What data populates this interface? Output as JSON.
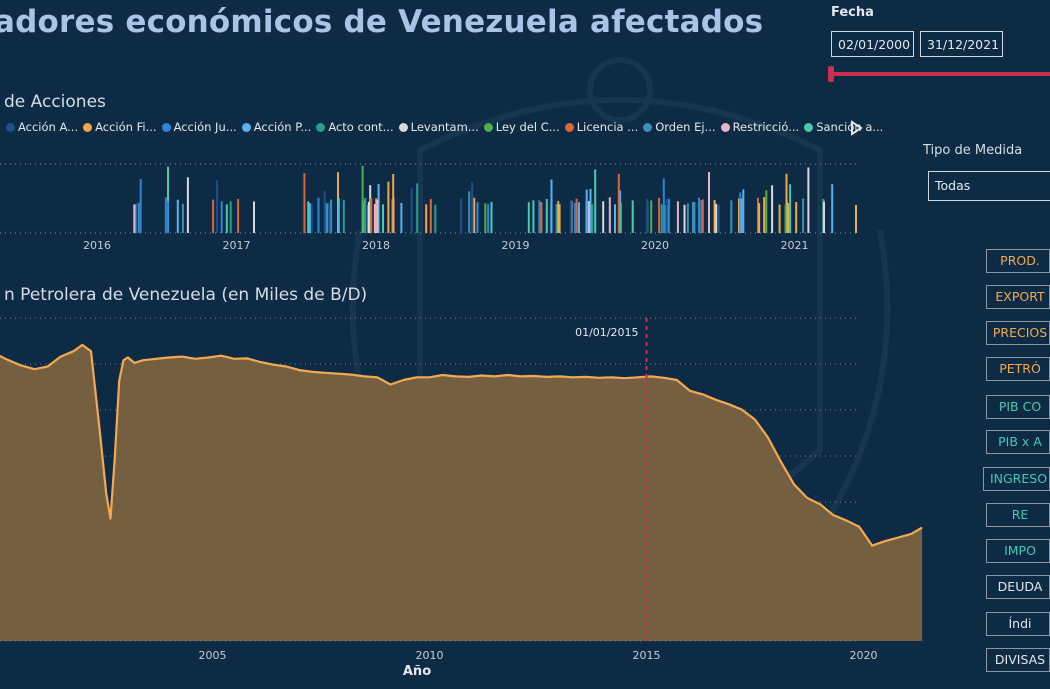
{
  "header": {
    "title": "adores económicos de Venezuela afectados"
  },
  "filters": {
    "fecha_label": "Fecha",
    "fecha_inicio": "02/01/2000",
    "fecha_fin": "31/12/2021",
    "tipo_medida_label": "Tipo de Medida",
    "tipo_medida_value": "Todas",
    "slider_color": "#c7314d"
  },
  "actions_chart": {
    "title": "de Acciones",
    "legend": [
      {
        "label": "Acción A...",
        "color": "#1f4e8c"
      },
      {
        "label": "Acción Fi...",
        "color": "#f0a84a"
      },
      {
        "label": "Acción Ju...",
        "color": "#2e86d6"
      },
      {
        "label": "Acción P...",
        "color": "#5bb0f0"
      },
      {
        "label": "Acto cont...",
        "color": "#2a9d8f"
      },
      {
        "label": "Levantam...",
        "color": "#d9d9d9"
      },
      {
        "label": "Ley del C...",
        "color": "#4caf50"
      },
      {
        "label": "Licencia ...",
        "color": "#e0643a"
      },
      {
        "label": "Orden Ej...",
        "color": "#3a8fb7"
      },
      {
        "label": "Restricció...",
        "color": "#e8b4c8"
      },
      {
        "label": "Sanción a...",
        "color": "#48c9b0"
      }
    ],
    "legend_next_icon": "play-triangle-icon",
    "x_ticks": [
      "2016",
      "2017",
      "2018",
      "2019",
      "2020",
      "2021"
    ]
  },
  "oil_chart": {
    "title": "n Petrolera de Venezuela (en Miles de B/D)",
    "reference_label": "01/01/2015",
    "x_ticks": [
      "2005",
      "2010",
      "2015",
      "2020"
    ],
    "xlabel": "Año",
    "line_color": "#f4a950",
    "fill_color": "#7a6240",
    "ref_color": "#c7314d",
    "chart_data": {
      "type": "area",
      "x": [
        2000.0,
        2000.3,
        2000.6,
        2000.9,
        2001.2,
        2001.5,
        2001.8,
        2002.0,
        2002.2,
        2002.4,
        2002.55,
        2002.65,
        2002.75,
        2002.85,
        2002.95,
        2003.05,
        2003.2,
        2003.4,
        2003.6,
        2003.8,
        2004.0,
        2004.3,
        2004.6,
        2004.9,
        2005.2,
        2005.5,
        2005.8,
        2006.1,
        2006.4,
        2006.7,
        2007.0,
        2007.3,
        2007.6,
        2007.9,
        2008.2,
        2008.5,
        2008.8,
        2009.1,
        2009.4,
        2009.7,
        2010.0,
        2010.3,
        2010.6,
        2010.9,
        2011.2,
        2011.5,
        2011.8,
        2012.1,
        2012.4,
        2012.7,
        2013.0,
        2013.3,
        2013.6,
        2013.9,
        2014.2,
        2014.5,
        2014.8,
        2015.1,
        2015.4,
        2015.7,
        2016.0,
        2016.3,
        2016.6,
        2016.9,
        2017.2,
        2017.5,
        2017.8,
        2018.1,
        2018.4,
        2018.7,
        2019.0,
        2019.3,
        2019.6,
        2019.9,
        2020.2,
        2020.5,
        2020.8,
        2021.1,
        2021.35
      ],
      "y": [
        3050,
        2980,
        2920,
        2880,
        2910,
        3020,
        3080,
        3150,
        3080,
        2200,
        1500,
        1220,
        1900,
        2750,
        2980,
        3010,
        2950,
        2980,
        2990,
        3000,
        3010,
        3020,
        2995,
        3010,
        3030,
        2995,
        3000,
        2960,
        2930,
        2910,
        2870,
        2850,
        2840,
        2830,
        2820,
        2800,
        2790,
        2710,
        2760,
        2790,
        2790,
        2815,
        2800,
        2795,
        2810,
        2800,
        2815,
        2800,
        2805,
        2795,
        2800,
        2790,
        2795,
        2785,
        2790,
        2780,
        2790,
        2800,
        2785,
        2760,
        2640,
        2600,
        2540,
        2490,
        2430,
        2320,
        2120,
        1850,
        1600,
        1450,
        1380,
        1260,
        1200,
        1130,
        920,
        970,
        1010,
        1050,
        1120
      ],
      "xlim": [
        2000,
        2021.5
      ],
      "reference_x": 2015,
      "xlabel": "Año"
    }
  },
  "measure_buttons": [
    {
      "label": "PROD.",
      "color": "#f4a950"
    },
    {
      "label": "EXPORT",
      "color": "#f4a950"
    },
    {
      "label": "PRECIOS",
      "color": "#f4a950"
    },
    {
      "label": "PETRÓ",
      "color": "#f4a950"
    },
    {
      "label": "PIB CO",
      "color": "#48c9b0"
    },
    {
      "label": "PIB x A",
      "color": "#48c9b0"
    },
    {
      "label": "INGRESO",
      "color": "#48c9b0"
    },
    {
      "label": "RE",
      "color": "#48c9b0"
    },
    {
      "label": "IMPO",
      "color": "#48c9b0"
    },
    {
      "label": "DEUDA",
      "color": "#e4e8ee"
    },
    {
      "label": "Índi",
      "color": "#e4e8ee"
    },
    {
      "label": "DIVISAS",
      "color": "#e4e8ee"
    }
  ]
}
